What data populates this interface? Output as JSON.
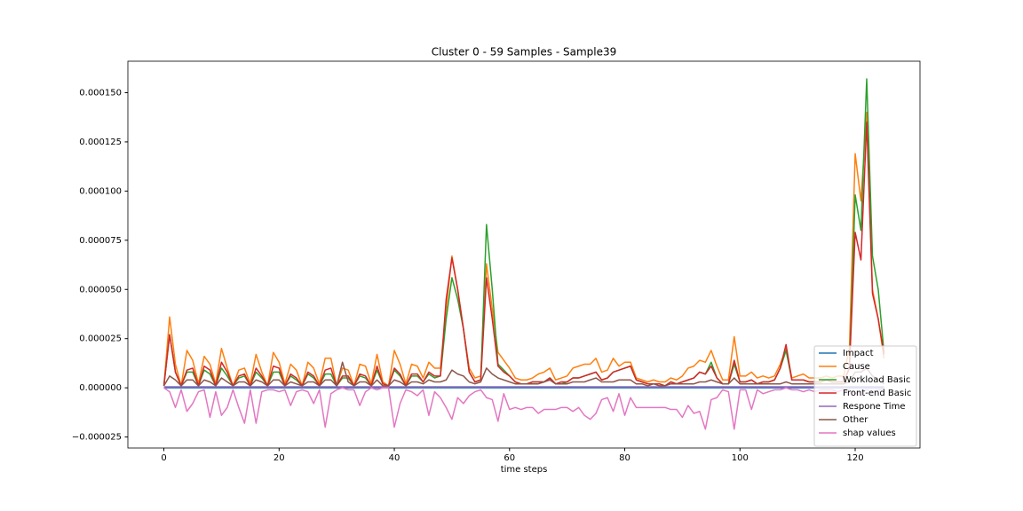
{
  "chart_data": {
    "type": "line",
    "title": "Cluster 0 - 59 Samples - Sample39",
    "x_label": "time steps",
    "x": [
      0,
      1,
      2,
      3,
      4,
      5,
      6,
      7,
      8,
      9,
      10,
      11,
      12,
      13,
      14,
      15,
      16,
      17,
      18,
      19,
      20,
      21,
      22,
      23,
      24,
      25,
      26,
      27,
      28,
      29,
      30,
      31,
      32,
      33,
      34,
      35,
      36,
      37,
      38,
      39,
      40,
      41,
      42,
      43,
      44,
      45,
      46,
      47,
      48,
      49,
      50,
      51,
      52,
      53,
      54,
      55,
      56,
      57,
      58,
      59,
      60,
      61,
      62,
      63,
      64,
      65,
      66,
      67,
      68,
      69,
      70,
      71,
      72,
      73,
      74,
      75,
      76,
      77,
      78,
      79,
      80,
      81,
      82,
      83,
      84,
      85,
      86,
      87,
      88,
      89,
      90,
      91,
      92,
      93,
      94,
      95,
      96,
      97,
      98,
      99,
      100,
      101,
      102,
      103,
      104,
      105,
      106,
      107,
      108,
      109,
      110,
      111,
      112,
      113,
      114,
      115,
      116,
      117,
      118,
      119,
      120,
      121,
      122,
      123,
      124,
      125
    ],
    "xlim": [
      -6.25,
      131.25
    ],
    "xticks": [
      0,
      20,
      40,
      60,
      80,
      100,
      120
    ],
    "ylim": [
      -3.06e-05,
      0.000166
    ],
    "yticks": [
      {
        "value": -2.5e-05,
        "label": "−0.000025"
      },
      {
        "value": 0,
        "label": "0.000000"
      },
      {
        "value": 2.5e-05,
        "label": "0.000025"
      },
      {
        "value": 5e-05,
        "label": "0.000050"
      },
      {
        "value": 7.5e-05,
        "label": "0.000075"
      },
      {
        "value": 0.0001,
        "label": "0.000100"
      },
      {
        "value": 0.000125,
        "label": "0.000125"
      },
      {
        "value": 0.00015,
        "label": "0.000150"
      }
    ],
    "grid": false,
    "legend": "lower right",
    "series": [
      {
        "name": "Impact",
        "color": "#1f77b4",
        "values": [
          0,
          0,
          0,
          0,
          0,
          0,
          0,
          0,
          0,
          0,
          0,
          0,
          0,
          0,
          0,
          0,
          0,
          0,
          0,
          0,
          0,
          0,
          0,
          0,
          0,
          0,
          0,
          0,
          0,
          0,
          0,
          0,
          0,
          0,
          0,
          0,
          0,
          0,
          0,
          0,
          0,
          0,
          0,
          0,
          0,
          0,
          0,
          0,
          0,
          0,
          0,
          0,
          0,
          0,
          0,
          0,
          0,
          0,
          0,
          0,
          0,
          0,
          0,
          0,
          0,
          0,
          0,
          0,
          0,
          0,
          0,
          0,
          0,
          0,
          0,
          0,
          0,
          0,
          0,
          0,
          0,
          0,
          0,
          0,
          0,
          0,
          0,
          0,
          0,
          0,
          0,
          0,
          0,
          0,
          0,
          0,
          0,
          0,
          0,
          0,
          0,
          0,
          0,
          0,
          0,
          0,
          0,
          0,
          0,
          0,
          0,
          0,
          0,
          0,
          0,
          0,
          0,
          0,
          0,
          0,
          0,
          0,
          0,
          0,
          0,
          0
        ]
      },
      {
        "name": "Cause",
        "color": "#ff7f0e",
        "values": [
          1e-06,
          3.6e-05,
          1.2e-05,
          1e-06,
          1.9e-05,
          1.4e-05,
          2e-06,
          1.6e-05,
          1.2e-05,
          2e-06,
          2e-05,
          1e-05,
          1e-06,
          9e-06,
          1e-05,
          2e-06,
          1.7e-05,
          8e-06,
          1e-06,
          1.8e-05,
          1.3e-05,
          2e-06,
          1.2e-05,
          9e-06,
          1e-06,
          1.3e-05,
          1e-05,
          2e-06,
          1.5e-05,
          1.5e-05,
          1e-06,
          1e-05,
          9e-06,
          1e-06,
          1.2e-05,
          1.1e-05,
          2e-06,
          1.7e-05,
          3e-06,
          1e-06,
          1.9e-05,
          1.2e-05,
          2e-06,
          1.2e-05,
          1.1e-05,
          5e-06,
          1.3e-05,
          1e-05,
          1e-05,
          4e-05,
          6.7e-05,
          5e-05,
          3e-05,
          1e-05,
          5e-06,
          6e-06,
          6.3e-05,
          4e-05,
          1.8e-05,
          1.4e-05,
          1e-05,
          5e-06,
          4e-06,
          4e-06,
          5e-06,
          7e-06,
          8e-06,
          1e-05,
          4e-06,
          5e-06,
          6e-06,
          1e-05,
          1.1e-05,
          1.2e-05,
          1.2e-05,
          1.5e-05,
          8e-06,
          9e-06,
          1.5e-05,
          1.1e-05,
          1.3e-05,
          1.3e-05,
          5e-06,
          4e-06,
          3e-06,
          4e-06,
          3e-06,
          3e-06,
          5e-06,
          4e-06,
          6e-06,
          1e-05,
          1.1e-05,
          1.4e-05,
          1.3e-05,
          1.9e-05,
          1.1e-05,
          4e-06,
          4e-06,
          2.6e-05,
          6e-06,
          6e-06,
          8e-06,
          5e-06,
          6e-06,
          5e-06,
          6e-06,
          1.2e-05,
          2e-05,
          5e-06,
          6e-06,
          7e-06,
          5e-06,
          5e-06,
          5e-06,
          6e-06,
          5e-06,
          6e-06,
          6e-06,
          2e-05,
          0.000119,
          9.5e-05,
          0.00014,
          5e-05,
          3.5e-05,
          1.5e-05
        ]
      },
      {
        "name": "Workload Basic",
        "color": "#2ca02c",
        "values": [
          1e-06,
          2.7e-05,
          8e-06,
          1e-06,
          8e-06,
          8e-06,
          1e-06,
          9e-06,
          7e-06,
          1e-06,
          1e-05,
          6e-06,
          1e-06,
          5e-06,
          6e-06,
          1e-06,
          8e-06,
          5e-06,
          1e-06,
          8e-06,
          8e-06,
          1e-06,
          6e-06,
          4e-06,
          1e-06,
          7e-06,
          5e-06,
          1e-06,
          7e-06,
          7e-06,
          1e-06,
          5e-06,
          5e-06,
          1e-06,
          6e-06,
          5e-06,
          1e-06,
          9e-06,
          2e-06,
          1e-06,
          9e-06,
          6e-06,
          1e-06,
          6e-06,
          6e-06,
          3e-06,
          7e-06,
          5e-06,
          6e-06,
          3.5e-05,
          5.6e-05,
          4.5e-05,
          3e-05,
          8e-06,
          3e-06,
          4e-06,
          8.3e-05,
          5e-05,
          1.2e-05,
          9e-06,
          6e-06,
          3e-06,
          2e-06,
          2e-06,
          3e-06,
          3e-06,
          3e-06,
          5e-06,
          2e-06,
          2e-06,
          3e-06,
          5e-06,
          5e-06,
          6e-06,
          7e-06,
          8e-06,
          4e-06,
          5e-06,
          8e-06,
          9e-06,
          1e-05,
          1.1e-05,
          4e-06,
          3e-06,
          2e-06,
          2e-06,
          2e-06,
          1e-06,
          3e-06,
          2e-06,
          3e-06,
          4e-06,
          5e-06,
          8e-06,
          7e-06,
          1.3e-05,
          5e-06,
          2e-06,
          2e-06,
          1.2e-05,
          3e-06,
          3e-06,
          4e-06,
          2e-06,
          3e-06,
          3e-06,
          4e-06,
          1e-05,
          1.9e-05,
          4e-06,
          4e-06,
          4e-06,
          3e-06,
          3e-06,
          3e-06,
          4e-06,
          3e-06,
          3e-06,
          3e-06,
          1e-05,
          9.8e-05,
          8e-05,
          0.000157,
          6.7e-05,
          5e-05,
          1.8e-05
        ]
      },
      {
        "name": "Front-end Basic",
        "color": "#d62728",
        "values": [
          1e-06,
          2.7e-05,
          8e-06,
          1e-06,
          9e-06,
          1e-05,
          1e-06,
          1.1e-05,
          9e-06,
          1e-06,
          1.3e-05,
          8e-06,
          1e-06,
          6e-06,
          7e-06,
          1e-06,
          1e-05,
          6e-06,
          1e-06,
          1.1e-05,
          1e-05,
          1e-06,
          7e-06,
          5e-06,
          1e-06,
          8e-06,
          6e-06,
          1e-06,
          9e-06,
          1e-05,
          1e-06,
          6e-06,
          6e-06,
          1e-06,
          7e-06,
          6e-06,
          1e-06,
          1.1e-05,
          2e-06,
          1e-06,
          1e-05,
          7e-06,
          1e-06,
          7e-06,
          7e-06,
          3e-06,
          8e-06,
          6e-06,
          6e-06,
          4.5e-05,
          6.6e-05,
          5e-05,
          3e-05,
          8e-06,
          3e-06,
          4e-06,
          5.6e-05,
          3.5e-05,
          1.1e-05,
          8e-06,
          6e-06,
          3e-06,
          2e-06,
          2e-06,
          3e-06,
          3e-06,
          3e-06,
          5e-06,
          2e-06,
          3e-06,
          3e-06,
          5e-06,
          5e-06,
          6e-06,
          7e-06,
          8e-06,
          4e-06,
          5e-06,
          8e-06,
          9e-06,
          1e-05,
          1.1e-05,
          4e-06,
          3e-06,
          2e-06,
          2e-06,
          2e-06,
          1e-06,
          3e-06,
          2e-06,
          3e-06,
          4e-06,
          5e-06,
          8e-06,
          7e-06,
          1.1e-05,
          5e-06,
          2e-06,
          2e-06,
          1.4e-05,
          3e-06,
          3e-06,
          4e-06,
          2e-06,
          3e-06,
          3e-06,
          4e-06,
          1e-05,
          2.2e-05,
          4e-06,
          4e-06,
          4e-06,
          3e-06,
          3e-06,
          3e-06,
          4e-06,
          3e-06,
          3e-06,
          3e-06,
          1e-05,
          7.9e-05,
          6.5e-05,
          0.000135,
          4.8e-05,
          3.5e-05,
          1.7e-05
        ]
      },
      {
        "name": "Respone Time",
        "color": "#9467bd",
        "values": [
          5e-07,
          5e-07,
          5e-07,
          5e-07,
          5e-07,
          5e-07,
          5e-07,
          5e-07,
          5e-07,
          5e-07,
          5e-07,
          5e-07,
          5e-07,
          5e-07,
          5e-07,
          5e-07,
          5e-07,
          5e-07,
          5e-07,
          5e-07,
          5e-07,
          5e-07,
          5e-07,
          5e-07,
          5e-07,
          5e-07,
          5e-07,
          5e-07,
          5e-07,
          5e-07,
          5e-07,
          5e-07,
          5e-07,
          5e-07,
          5e-07,
          5e-07,
          5e-07,
          5e-07,
          5e-07,
          5e-07,
          5e-07,
          5e-07,
          5e-07,
          5e-07,
          5e-07,
          5e-07,
          5e-07,
          5e-07,
          5e-07,
          5e-07,
          5e-07,
          5e-07,
          5e-07,
          5e-07,
          5e-07,
          5e-07,
          5e-07,
          5e-07,
          5e-07,
          5e-07,
          5e-07,
          5e-07,
          5e-07,
          5e-07,
          5e-07,
          5e-07,
          5e-07,
          5e-07,
          5e-07,
          5e-07,
          5e-07,
          5e-07,
          5e-07,
          5e-07,
          5e-07,
          5e-07,
          5e-07,
          5e-07,
          5e-07,
          5e-07,
          5e-07,
          5e-07,
          5e-07,
          5e-07,
          5e-07,
          5e-07,
          5e-07,
          5e-07,
          5e-07,
          5e-07,
          5e-07,
          5e-07,
          5e-07,
          5e-07,
          5e-07,
          5e-07,
          5e-07,
          5e-07,
          5e-07,
          5e-07,
          5e-07,
          5e-07,
          5e-07,
          5e-07,
          5e-07,
          5e-07,
          5e-07,
          5e-07,
          5e-07,
          5e-07,
          5e-07,
          5e-07,
          5e-07,
          5e-07,
          5e-07,
          5e-07,
          5e-07,
          5e-07,
          5e-07,
          5e-07,
          5e-07,
          5e-07,
          5e-07,
          5e-07,
          5e-07,
          5e-07
        ]
      },
      {
        "name": "Other",
        "color": "#8c564b",
        "values": [
          1e-06,
          6e-06,
          4e-06,
          1e-06,
          4e-06,
          4e-06,
          1e-06,
          4e-06,
          3e-06,
          1e-06,
          5e-06,
          3e-06,
          1e-06,
          3e-06,
          3e-06,
          1e-06,
          4e-06,
          3e-06,
          1e-06,
          4e-06,
          4e-06,
          1e-06,
          3e-06,
          2e-06,
          1e-06,
          3e-06,
          3e-06,
          1e-06,
          4e-06,
          4e-06,
          1e-06,
          1.3e-05,
          3e-06,
          1e-06,
          3e-06,
          3e-06,
          1e-06,
          4e-06,
          1e-06,
          1e-06,
          4e-06,
          3e-06,
          1e-06,
          3e-06,
          3e-06,
          2e-06,
          4e-06,
          3e-06,
          3e-06,
          4e-06,
          9e-06,
          7e-06,
          6e-06,
          3e-06,
          2e-06,
          3e-06,
          1e-05,
          7e-06,
          5e-06,
          4e-06,
          3e-06,
          2e-06,
          2e-06,
          2e-06,
          2e-06,
          2e-06,
          3e-06,
          4e-06,
          2e-06,
          2e-06,
          2e-06,
          3e-06,
          3e-06,
          3e-06,
          4e-06,
          5e-06,
          3e-06,
          3e-06,
          3e-06,
          4e-06,
          4e-06,
          4e-06,
          2e-06,
          2e-06,
          1e-06,
          2e-06,
          1e-06,
          1e-06,
          2e-06,
          2e-06,
          2e-06,
          2e-06,
          2e-06,
          3e-06,
          3e-06,
          4e-06,
          3e-06,
          2e-06,
          2e-06,
          5e-06,
          2e-06,
          2e-06,
          2e-06,
          2e-06,
          2e-06,
          2e-06,
          2e-06,
          2e-06,
          3e-06,
          2e-06,
          2e-06,
          2e-06,
          2e-06,
          2e-06,
          2e-06,
          2e-06,
          2e-06,
          2e-06,
          2e-06,
          3e-06,
          8e-06,
          8e-06,
          1e-05,
          6e-06,
          4e-06,
          2e-06
        ]
      },
      {
        "name": "shap values",
        "color": "#e377c2",
        "values": [
          0,
          -2e-06,
          -1e-05,
          -1e-06,
          -1.2e-05,
          -8e-06,
          -2e-06,
          -1e-06,
          -1.5e-05,
          -2e-06,
          -1.4e-05,
          -1e-05,
          -1e-06,
          -1e-05,
          -1.8e-05,
          -1e-06,
          -1.8e-05,
          -2e-06,
          -1e-06,
          -1e-06,
          -2e-06,
          -1e-06,
          -9e-06,
          -2e-06,
          -1e-06,
          -2e-06,
          -8e-06,
          -1e-06,
          -2e-05,
          -3e-06,
          -1e-06,
          0,
          -1e-06,
          -1e-06,
          -9e-06,
          -2e-06,
          0,
          -1e-06,
          0,
          0,
          -2e-05,
          -8e-06,
          -1e-06,
          -2e-06,
          -4e-06,
          -1e-06,
          -1.4e-05,
          -2e-06,
          -5e-06,
          -1e-05,
          -1.6e-05,
          -5e-06,
          -8e-06,
          -4e-06,
          -2e-06,
          -1e-06,
          -5e-06,
          -6e-06,
          -1.7e-05,
          -3e-06,
          -1.1e-05,
          -1e-05,
          -1.1e-05,
          -1e-05,
          -1e-05,
          -1.3e-05,
          -1.1e-05,
          -1.1e-05,
          -1.1e-05,
          -1e-05,
          -1e-05,
          -1.2e-05,
          -1e-05,
          -1.4e-05,
          -1.6e-05,
          -1.3e-05,
          -6e-06,
          -5e-06,
          -1.2e-05,
          -3e-06,
          -1.4e-05,
          -5e-06,
          -1e-05,
          -1e-05,
          -1e-05,
          -1e-05,
          -1e-05,
          -1e-05,
          -1.1e-05,
          -1.1e-05,
          -1.5e-05,
          -9e-06,
          -1.3e-05,
          -1.2e-05,
          -2.1e-05,
          -6e-06,
          -5e-06,
          -1e-06,
          -2e-06,
          -2.1e-05,
          -1e-06,
          -1e-06,
          -1.1e-05,
          -1e-06,
          -3e-06,
          -2e-06,
          -1e-06,
          -1e-06,
          0,
          -1e-06,
          -1e-06,
          -2e-06,
          -1e-06,
          -2e-06,
          -1e-06,
          -1e-06,
          -1e-06,
          -2e-06,
          -1e-06,
          -1e-06,
          -3e-06,
          -2e-06,
          -1e-06,
          -2e-06,
          -1e-06,
          -1e-06
        ]
      }
    ]
  }
}
